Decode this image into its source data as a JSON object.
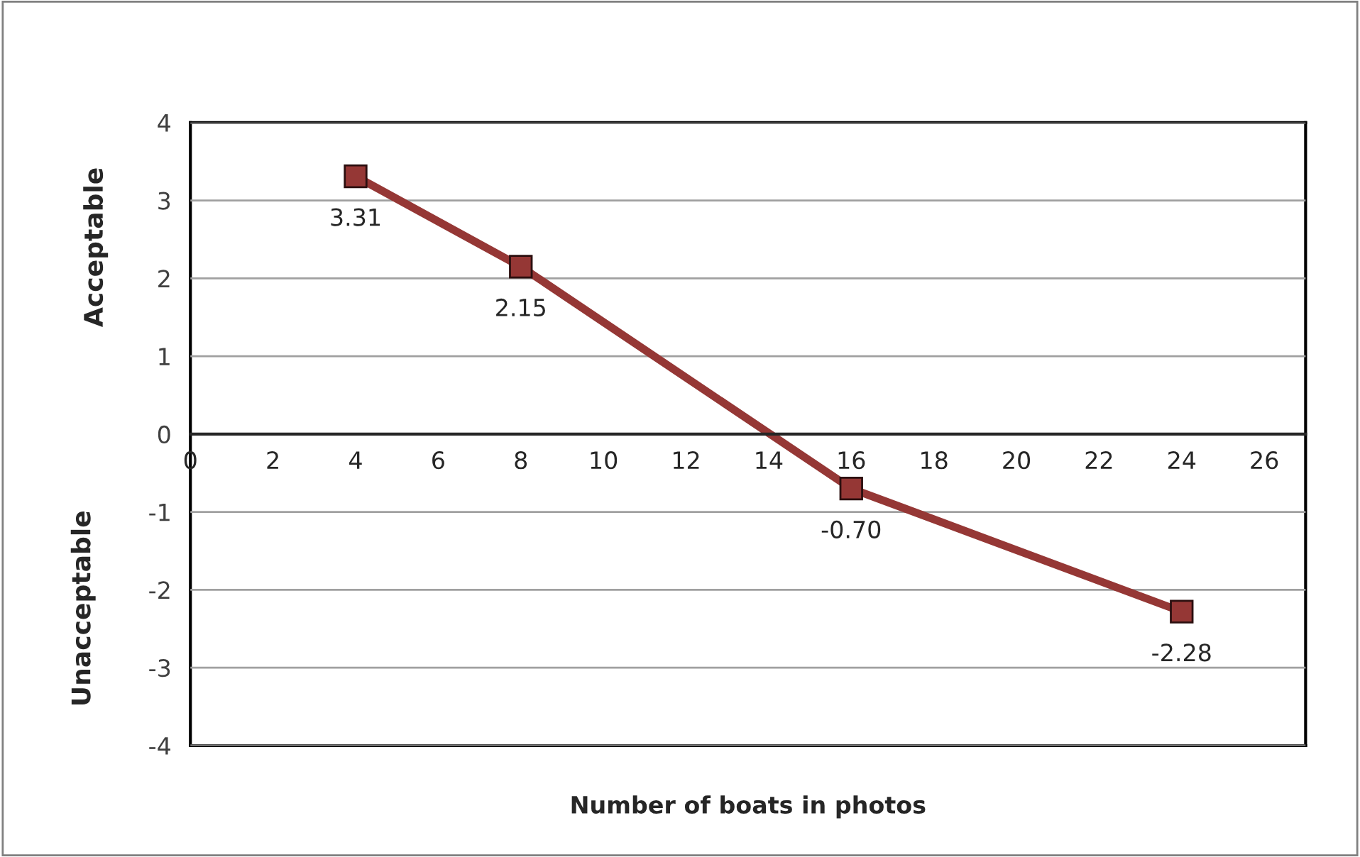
{
  "chart_data": {
    "type": "line",
    "xlabel": "Number of boats in photos",
    "ylabel": "Unacceptable",
    "annotations": [
      "Acceptable"
    ],
    "x": [
      4,
      8,
      16,
      24
    ],
    "series": [
      {
        "color": "#953735",
        "values": [
          3.31,
          2.15,
          -0.7,
          -2.28
        ],
        "value_labels": [
          "3.31",
          "2.15",
          "-0.70",
          "-2.28"
        ]
      }
    ],
    "xlim": [
      0,
      27
    ],
    "xticks": [
      0,
      2,
      4,
      6,
      8,
      10,
      12,
      14,
      16,
      18,
      20,
      22,
      24,
      26
    ],
    "ylim": [
      -4,
      4
    ],
    "yticks": [
      -4,
      -3,
      -2,
      -1,
      0,
      1,
      2,
      3,
      4
    ],
    "grid": "y",
    "marker": "square",
    "line_style": "solid",
    "legend": false
  }
}
